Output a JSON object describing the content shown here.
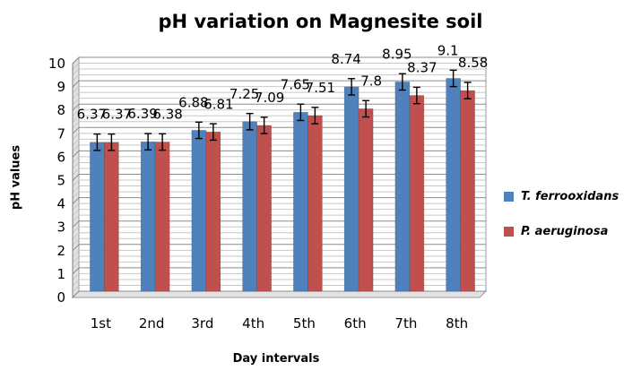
{
  "chart_data": {
    "type": "bar",
    "title": "pH variation on Magnesite soil",
    "xlabel": "Day intervals",
    "ylabel": "pH values",
    "categories": [
      "1st",
      "2nd",
      "3rd",
      "4th",
      "5th",
      "6th",
      "7th",
      "8th"
    ],
    "ylim": [
      0,
      10
    ],
    "yticks": [
      0,
      1,
      2,
      3,
      4,
      5,
      6,
      7,
      8,
      9,
      10
    ],
    "grid": "horizontal",
    "legend_position": "right",
    "error_bar_half_width": 0.35,
    "series": [
      {
        "name": "T. ferrooxidans",
        "color": "#4f81bd",
        "values": [
          6.37,
          6.39,
          6.88,
          7.25,
          7.65,
          8.74,
          8.95,
          9.1
        ],
        "labels": [
          "6.37",
          "6.39",
          "6.88",
          "7.25",
          "7.65",
          "8.74",
          "8.95",
          "9.1"
        ]
      },
      {
        "name": "P. aeruginosa",
        "color": "#c0504d",
        "values": [
          6.37,
          6.38,
          6.81,
          7.09,
          7.51,
          7.8,
          8.37,
          8.58
        ],
        "labels": [
          "6.37",
          "6.38",
          "6.81",
          "7.09",
          "7.51",
          "7.8",
          "8.37",
          "8.58"
        ]
      }
    ]
  }
}
